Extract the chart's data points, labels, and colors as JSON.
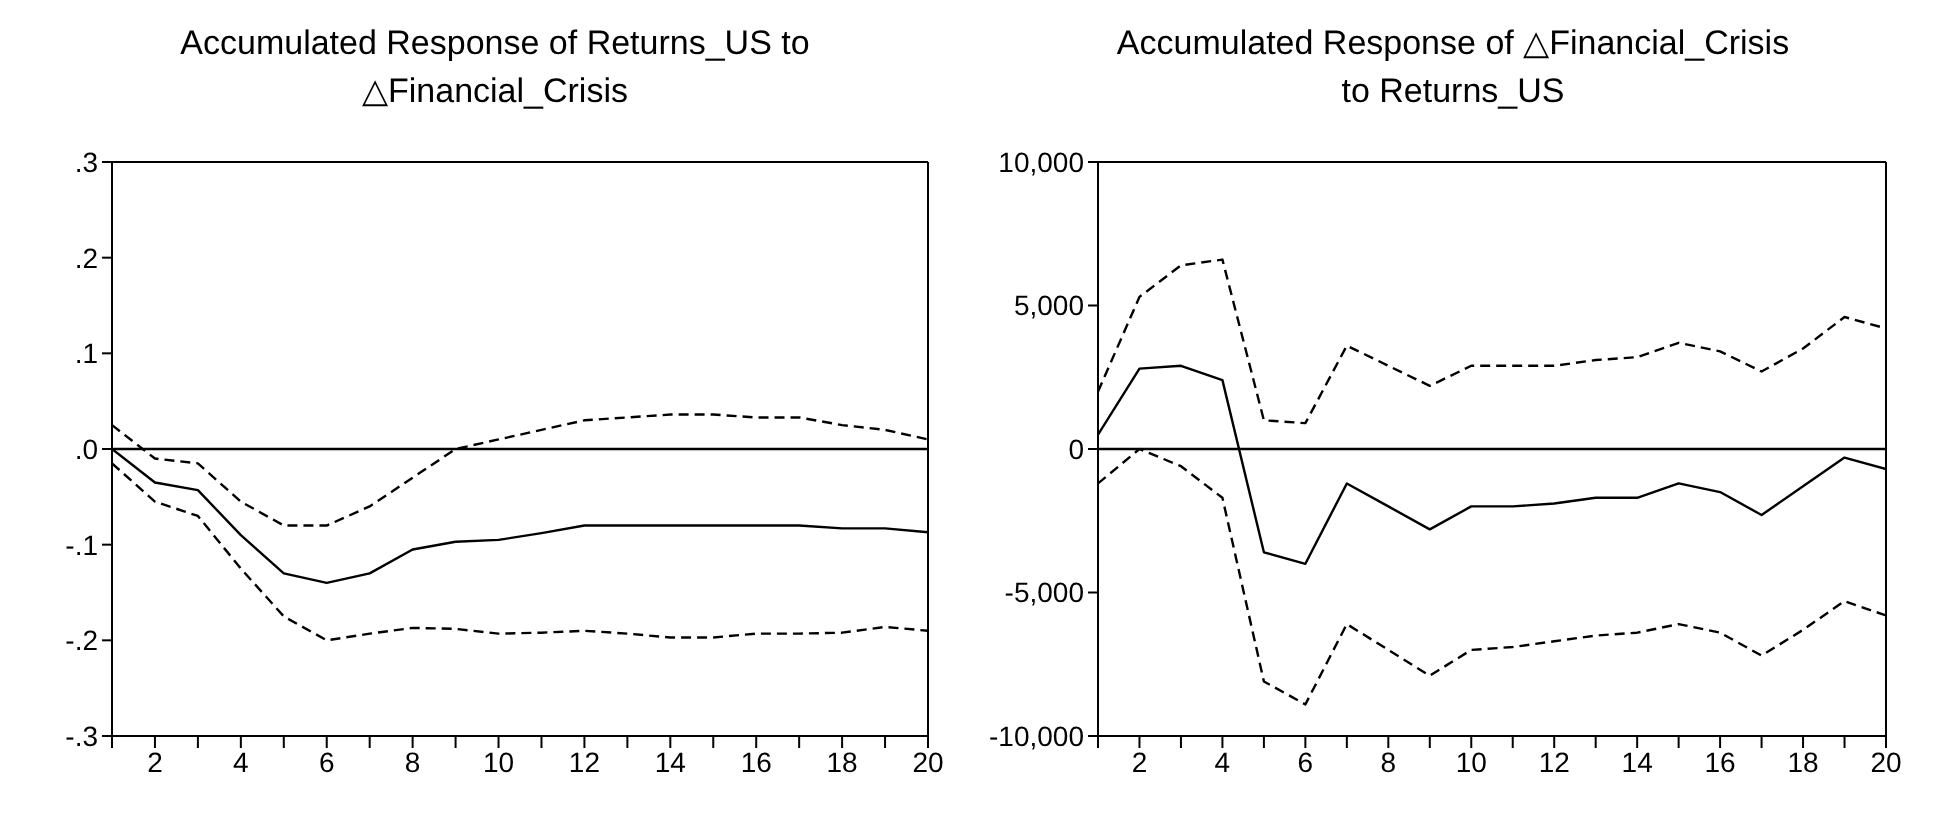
{
  "chart_data": [
    {
      "type": "line",
      "title": "Accumulated Response of Returns_US to △Financial_Crisis",
      "x": [
        1,
        2,
        3,
        4,
        5,
        6,
        7,
        8,
        9,
        10,
        11,
        12,
        13,
        14,
        15,
        16,
        17,
        18,
        19,
        20
      ],
      "series": [
        {
          "color": "#000000",
          "line_style": "solid",
          "values": [
            0.0,
            -0.035,
            -0.043,
            -0.09,
            -0.13,
            -0.14,
            -0.13,
            -0.105,
            -0.097,
            -0.095,
            -0.088,
            -0.08,
            -0.08,
            -0.08,
            -0.08,
            -0.08,
            -0.08,
            -0.083,
            -0.083,
            -0.087
          ]
        },
        {
          "color": "#000000",
          "line_style": "dashed",
          "values": [
            0.025,
            -0.01,
            -0.015,
            -0.055,
            -0.08,
            -0.08,
            -0.06,
            -0.03,
            0.0,
            0.01,
            0.02,
            0.03,
            0.033,
            0.036,
            0.036,
            0.033,
            0.033,
            0.025,
            0.02,
            0.01
          ]
        },
        {
          "color": "#000000",
          "line_style": "dashed",
          "values": [
            -0.015,
            -0.055,
            -0.07,
            -0.125,
            -0.175,
            -0.2,
            -0.193,
            -0.187,
            -0.188,
            -0.193,
            -0.192,
            -0.19,
            -0.193,
            -0.197,
            -0.197,
            -0.193,
            -0.193,
            -0.192,
            -0.186,
            -0.19
          ]
        }
      ],
      "xlim": [
        1,
        20
      ],
      "xticks": [
        {
          "value": 1,
          "label": null
        },
        2,
        {
          "value": 3,
          "label": null
        },
        4,
        {
          "value": 5,
          "label": null
        },
        6,
        {
          "value": 7,
          "label": null
        },
        8,
        {
          "value": 9,
          "label": null
        },
        10,
        {
          "value": 11,
          "label": null
        },
        12,
        {
          "value": 13,
          "label": null
        },
        14,
        {
          "value": 15,
          "label": null
        },
        16,
        {
          "value": 17,
          "label": null
        },
        18,
        {
          "value": 19,
          "label": null
        },
        20
      ],
      "ylim": [
        -0.3,
        0.3
      ],
      "yticks": [
        {
          "value": -0.3,
          "label": "-.3"
        },
        {
          "value": -0.2,
          "label": "-.2"
        },
        {
          "value": -0.1,
          "label": "-.1"
        },
        {
          "value": 0,
          "label": ".0"
        },
        {
          "value": 0.1,
          "label": ".1"
        },
        {
          "value": 0.2,
          "label": ".2"
        },
        {
          "value": 0.3,
          "label": ".3"
        }
      ],
      "ref_lines": [
        {
          "axis": "y",
          "value": 0,
          "color": "#000000",
          "line_style": "solid"
        }
      ],
      "grid": false,
      "marker": "none"
    },
    {
      "type": "line",
      "title": "Accumulated Response of △Financial_Crisis to Returns_US",
      "x": [
        1,
        2,
        3,
        4,
        5,
        6,
        7,
        8,
        9,
        10,
        11,
        12,
        13,
        14,
        15,
        16,
        17,
        18,
        19,
        20
      ],
      "series": [
        {
          "color": "#000000",
          "line_style": "solid",
          "values": [
            500,
            2800,
            2900,
            2400,
            -3600,
            -4000,
            -1200,
            -2000,
            -2800,
            -2000,
            -2000,
            -1900,
            -1700,
            -1700,
            -1200,
            -1500,
            -2300,
            -1300,
            -300,
            -700
          ]
        },
        {
          "color": "#000000",
          "line_style": "dashed",
          "values": [
            2000,
            5300,
            6400,
            6600,
            1000,
            900,
            3600,
            2900,
            2200,
            2900,
            2900,
            2900,
            3100,
            3200,
            3700,
            3400,
            2700,
            3500,
            4600,
            4200
          ]
        },
        {
          "color": "#000000",
          "line_style": "dashed",
          "values": [
            -1200,
            0,
            -600,
            -1700,
            -8100,
            -8900,
            -6100,
            -7000,
            -7900,
            -7000,
            -6900,
            -6700,
            -6500,
            -6400,
            -6100,
            -6400,
            -7200,
            -6300,
            -5300,
            -5800
          ]
        }
      ],
      "xlim": [
        1,
        20
      ],
      "xticks": [
        {
          "value": 1,
          "label": null
        },
        2,
        {
          "value": 3,
          "label": null
        },
        4,
        {
          "value": 5,
          "label": null
        },
        6,
        {
          "value": 7,
          "label": null
        },
        8,
        {
          "value": 9,
          "label": null
        },
        10,
        {
          "value": 11,
          "label": null
        },
        12,
        {
          "value": 13,
          "label": null
        },
        14,
        {
          "value": 15,
          "label": null
        },
        16,
        {
          "value": 17,
          "label": null
        },
        18,
        {
          "value": 19,
          "label": null
        },
        20
      ],
      "ylim": [
        -10000,
        10000
      ],
      "yticks": [
        {
          "value": -10000,
          "label": "-10,000"
        },
        {
          "value": -5000,
          "label": "-5,000"
        },
        {
          "value": 0,
          "label": "0"
        },
        {
          "value": 5000,
          "label": "5,000"
        },
        {
          "value": 10000,
          "label": "10,000"
        }
      ],
      "ref_lines": [
        {
          "axis": "y",
          "value": 0,
          "color": "#000000",
          "line_style": "solid"
        }
      ],
      "grid": false,
      "marker": "none"
    }
  ]
}
